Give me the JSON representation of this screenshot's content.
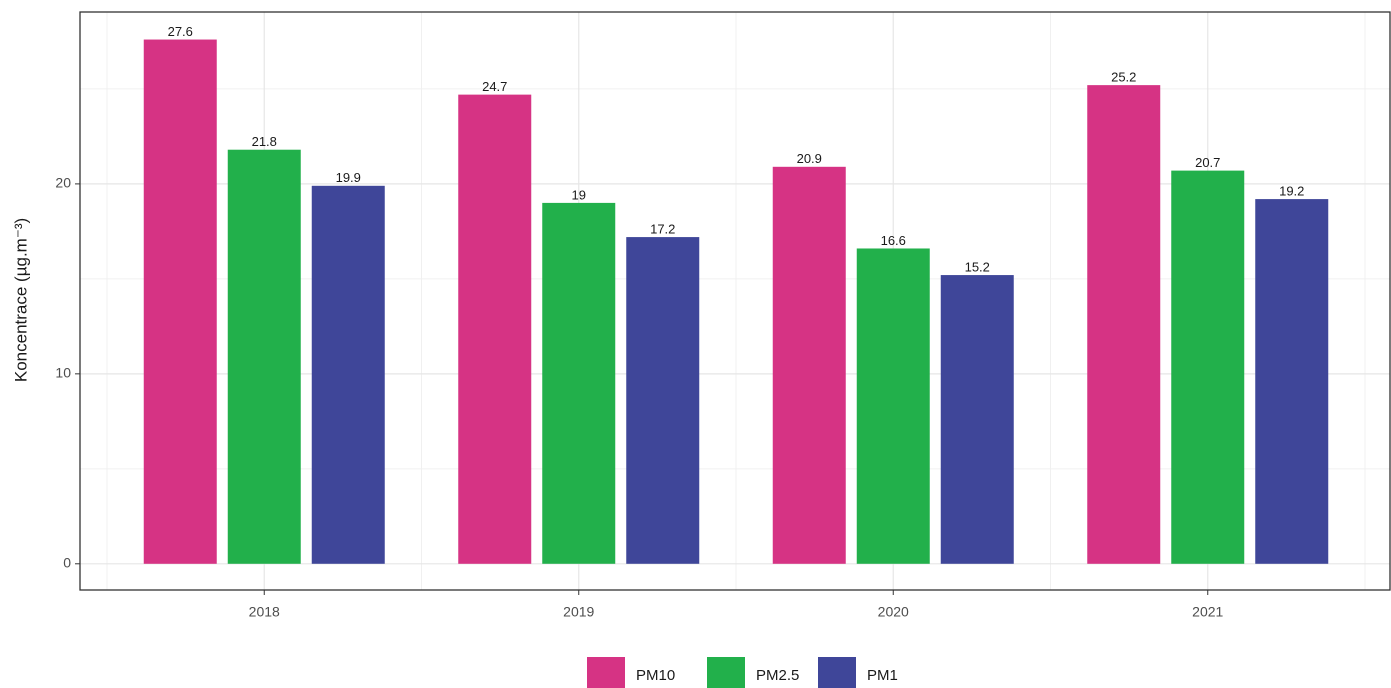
{
  "chart_data": {
    "type": "bar",
    "y_label": "Koncentrace (µg.m⁻³)",
    "categories": [
      "2018",
      "2019",
      "2020",
      "2021"
    ],
    "series": [
      {
        "name": "PM10",
        "color": "#d63384",
        "values": [
          27.6,
          24.7,
          20.9,
          25.2
        ]
      },
      {
        "name": "PM2.5",
        "color": "#22b04b",
        "values": [
          21.8,
          19,
          16.6,
          20.7
        ]
      },
      {
        "name": "PM1",
        "color": "#3f4699",
        "values": [
          19.9,
          17.2,
          15.2,
          19.2
        ]
      }
    ],
    "ylim": [
      -1.38,
      29.05
    ],
    "yticks": [
      0,
      10,
      20
    ],
    "minor_yticks": [
      5,
      15,
      25
    ],
    "grid": true,
    "legend": "bottom"
  }
}
